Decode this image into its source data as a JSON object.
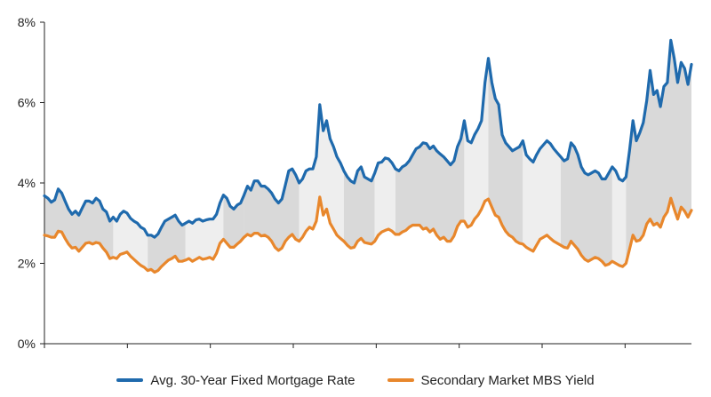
{
  "chart_data": {
    "type": "line",
    "title": "",
    "xlabel": "",
    "ylabel": "",
    "ylim": [
      0,
      8
    ],
    "yticks": [
      "0%",
      "2%",
      "4%",
      "6%",
      "8%"
    ],
    "grid": false,
    "legend_position": "bottom",
    "spread_fill": "gray bands between series, alternating light and dark",
    "series": [
      {
        "name": "Avg. 30-Year Fixed Mortgage Rate",
        "color": "#1f6aad",
        "values": [
          3.68,
          3.62,
          3.52,
          3.58,
          3.85,
          3.75,
          3.55,
          3.35,
          3.22,
          3.3,
          3.2,
          3.38,
          3.55,
          3.55,
          3.5,
          3.62,
          3.55,
          3.35,
          3.28,
          3.05,
          3.15,
          3.05,
          3.22,
          3.3,
          3.25,
          3.12,
          3.05,
          3.0,
          2.9,
          2.85,
          2.7,
          2.7,
          2.65,
          2.73,
          2.9,
          3.05,
          3.1,
          3.15,
          3.2,
          3.05,
          2.95,
          3.0,
          3.05,
          3.0,
          3.08,
          3.1,
          3.05,
          3.08,
          3.1,
          3.1,
          3.22,
          3.5,
          3.7,
          3.62,
          3.42,
          3.35,
          3.45,
          3.5,
          3.7,
          3.92,
          3.82,
          4.05,
          4.05,
          3.92,
          3.92,
          3.85,
          3.75,
          3.6,
          3.5,
          3.6,
          3.95,
          4.3,
          4.35,
          4.2,
          4.0,
          4.1,
          4.3,
          4.35,
          4.35,
          4.65,
          5.95,
          5.3,
          5.55,
          5.1,
          4.9,
          4.65,
          4.5,
          4.3,
          4.15,
          4.05,
          4.0,
          4.3,
          4.4,
          4.15,
          4.1,
          4.05,
          4.25,
          4.5,
          4.52,
          4.62,
          4.6,
          4.5,
          4.35,
          4.3,
          4.4,
          4.45,
          4.55,
          4.7,
          4.85,
          4.9,
          5.0,
          4.98,
          4.85,
          4.92,
          4.8,
          4.72,
          4.65,
          4.55,
          4.45,
          4.55,
          4.9,
          5.1,
          5.55,
          5.05,
          5.0,
          5.2,
          5.35,
          5.55,
          6.5,
          7.1,
          6.5,
          6.1,
          5.95,
          5.2,
          5.0,
          4.9,
          4.8,
          4.85,
          4.9,
          5.05,
          4.7,
          4.6,
          4.52,
          4.7,
          4.85,
          4.95,
          5.05,
          4.98,
          4.85,
          4.75,
          4.65,
          4.55,
          4.6,
          5.0,
          4.9,
          4.7,
          4.4,
          4.25,
          4.2,
          4.25,
          4.3,
          4.25,
          4.1,
          4.1,
          4.25,
          4.4,
          4.3,
          4.1,
          4.05,
          4.15,
          4.8,
          5.55,
          5.05,
          5.25,
          5.5,
          6.05,
          6.8,
          6.2,
          6.3,
          5.9,
          6.4,
          6.5,
          7.55,
          7.1,
          6.5,
          7.0,
          6.85,
          6.45,
          6.95
        ]
      },
      {
        "name": "Secondary Market MBS Yield",
        "color": "#e8872c",
        "values": [
          2.7,
          2.68,
          2.65,
          2.65,
          2.8,
          2.78,
          2.62,
          2.48,
          2.38,
          2.4,
          2.3,
          2.4,
          2.5,
          2.52,
          2.48,
          2.52,
          2.5,
          2.38,
          2.28,
          2.12,
          2.15,
          2.12,
          2.22,
          2.25,
          2.28,
          2.18,
          2.1,
          2.02,
          1.95,
          1.9,
          1.82,
          1.85,
          1.78,
          1.82,
          1.92,
          2.0,
          2.08,
          2.12,
          2.18,
          2.05,
          2.05,
          2.08,
          2.12,
          2.05,
          2.1,
          2.15,
          2.1,
          2.12,
          2.15,
          2.1,
          2.25,
          2.5,
          2.6,
          2.5,
          2.4,
          2.4,
          2.48,
          2.55,
          2.65,
          2.72,
          2.68,
          2.75,
          2.75,
          2.68,
          2.7,
          2.65,
          2.55,
          2.4,
          2.32,
          2.38,
          2.55,
          2.65,
          2.72,
          2.6,
          2.55,
          2.65,
          2.8,
          2.9,
          2.85,
          3.05,
          3.65,
          3.2,
          3.35,
          3.0,
          2.85,
          2.7,
          2.62,
          2.55,
          2.45,
          2.38,
          2.4,
          2.55,
          2.62,
          2.52,
          2.5,
          2.48,
          2.55,
          2.7,
          2.78,
          2.82,
          2.85,
          2.8,
          2.72,
          2.72,
          2.78,
          2.82,
          2.9,
          2.95,
          2.95,
          2.95,
          2.85,
          2.88,
          2.78,
          2.85,
          2.7,
          2.6,
          2.65,
          2.55,
          2.55,
          2.68,
          2.92,
          3.05,
          3.05,
          2.9,
          2.95,
          3.1,
          3.2,
          3.35,
          3.55,
          3.6,
          3.4,
          3.2,
          3.15,
          2.95,
          2.8,
          2.7,
          2.65,
          2.55,
          2.5,
          2.48,
          2.4,
          2.35,
          2.3,
          2.45,
          2.6,
          2.65,
          2.7,
          2.62,
          2.55,
          2.5,
          2.45,
          2.4,
          2.38,
          2.55,
          2.45,
          2.35,
          2.2,
          2.1,
          2.05,
          2.1,
          2.15,
          2.12,
          2.05,
          1.95,
          1.98,
          2.05,
          2.0,
          1.95,
          1.92,
          2.0,
          2.35,
          2.7,
          2.55,
          2.58,
          2.7,
          2.98,
          3.1,
          2.95,
          3.0,
          2.9,
          3.15,
          3.28,
          3.62,
          3.35,
          3.1,
          3.4,
          3.3,
          3.15,
          3.32
        ]
      }
    ],
    "bands": [
      {
        "end": 0.104,
        "shade": "dark"
      },
      {
        "end": 0.16,
        "shade": "light"
      },
      {
        "end": 0.22,
        "shade": "dark"
      },
      {
        "end": 0.275,
        "shade": "light"
      },
      {
        "end": 0.31,
        "shade": "dark"
      },
      {
        "end": 0.395,
        "shade": "dark"
      },
      {
        "end": 0.465,
        "shade": "light"
      },
      {
        "end": 0.51,
        "shade": "dark"
      },
      {
        "end": 0.54,
        "shade": "light"
      },
      {
        "end": 0.65,
        "shade": "dark"
      },
      {
        "end": 0.685,
        "shade": "light"
      },
      {
        "end": 0.74,
        "shade": "dark"
      },
      {
        "end": 0.8,
        "shade": "light"
      },
      {
        "end": 0.88,
        "shade": "dark"
      },
      {
        "end": 0.9,
        "shade": "light"
      },
      {
        "end": 1.0,
        "shade": "dark"
      }
    ],
    "band_colors": {
      "dark": "#d9d9d9",
      "light": "#eeeeee"
    },
    "axis_color": "#222222"
  },
  "legend": [
    {
      "label": "Avg. 30-Year Fixed Mortgage Rate",
      "color": "#1f6aad"
    },
    {
      "label": "Secondary Market MBS Yield",
      "color": "#e8872c"
    }
  ]
}
